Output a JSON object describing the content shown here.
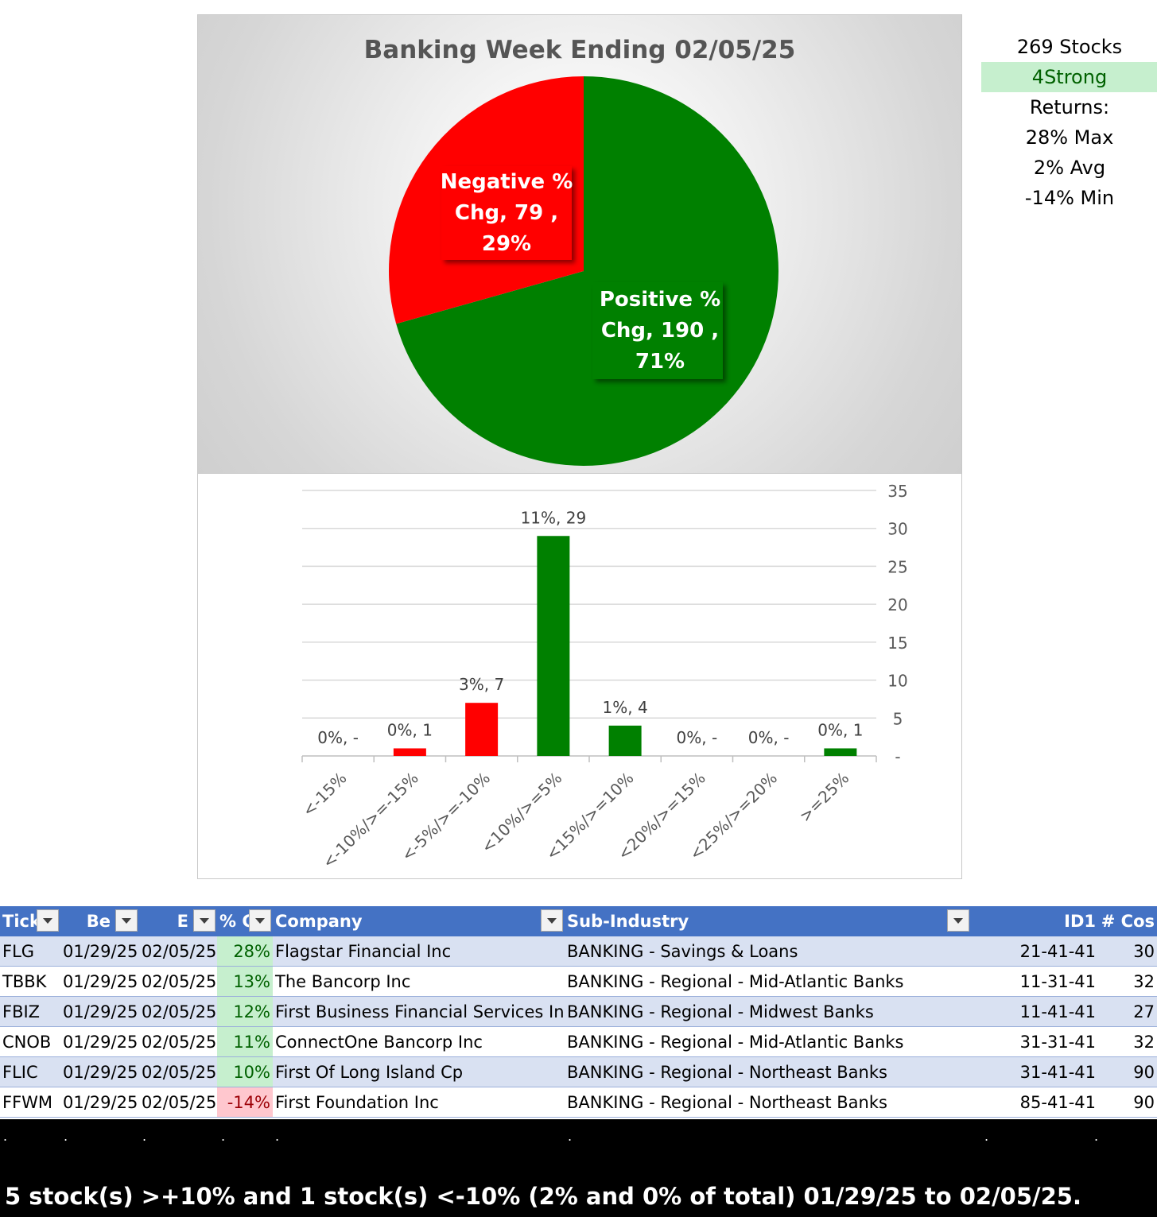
{
  "chart_data": [
    {
      "type": "pie",
      "title": "Banking Week Ending 02/05/25",
      "slices": [
        {
          "name": "Positive % Chg",
          "value": 190,
          "percent": "71%",
          "color": "#008000"
        },
        {
          "name": "Negative % Chg",
          "value": 79,
          "percent": "29%",
          "color": "#ff0000"
        }
      ],
      "labels": {
        "positive": [
          "Positive %",
          "Chg,  190 ,",
          "71%"
        ],
        "negative": [
          "Negative %",
          "Chg,  79 ,",
          "29%"
        ]
      }
    },
    {
      "type": "bar",
      "categories": [
        "<-15%",
        "<-10%/>=-15%",
        "<-5%/>=-10%",
        "<10%/>=5%",
        "<15%/>=10%",
        "<20%/>=15%",
        "<25%/>=20%",
        ">=25%"
      ],
      "values": [
        0,
        1,
        7,
        29,
        4,
        0,
        0,
        1
      ],
      "colors": [
        "#ff0000",
        "#ff0000",
        "#ff0000",
        "#008000",
        "#008000",
        "#008000",
        "#008000",
        "#008000"
      ],
      "data_labels": [
        "0%,  -",
        "0%,  1",
        "3%,  7",
        "11%,  29",
        "1%,  4",
        "0%,  -",
        "0%,  -",
        "0%,  1"
      ],
      "ylim": [
        0,
        35
      ],
      "yticks": [
        "-",
        "5",
        "10",
        "15",
        "20",
        "25",
        "30",
        "35"
      ],
      "grid": true,
      "yaxis_side": "right"
    }
  ],
  "side": {
    "stocks": "269 Stocks",
    "strong": "4Strong",
    "returns": "Returns:",
    "max": "28% Max",
    "avg": "2% Avg",
    "min": "-14% Min"
  },
  "table": {
    "headers": [
      "Tick",
      "Be",
      "E",
      "% C",
      "Company",
      "Sub-Industry",
      "ID1",
      "# Cos"
    ],
    "rows": [
      {
        "tick": "FLG",
        "begin": "01/29/25",
        "end": "02/05/25",
        "chg": "28%",
        "company": "Flagstar Financial Inc",
        "sub": "BANKING - Savings & Loans",
        "id1": "21-41-41",
        "cos": "30"
      },
      {
        "tick": "TBBK",
        "begin": "01/29/25",
        "end": "02/05/25",
        "chg": "13%",
        "company": "The Bancorp Inc",
        "sub": "BANKING - Regional - Mid-Atlantic Banks",
        "id1": "11-31-41",
        "cos": "32"
      },
      {
        "tick": "FBIZ",
        "begin": "01/29/25",
        "end": "02/05/25",
        "chg": "12%",
        "company": "First Business Financial Services Inc",
        "sub": "BANKING - Regional - Midwest Banks",
        "id1": "11-41-41",
        "cos": "27"
      },
      {
        "tick": "CNOB",
        "begin": "01/29/25",
        "end": "02/05/25",
        "chg": "11%",
        "company": "ConnectOne Bancorp Inc",
        "sub": "BANKING - Regional - Mid-Atlantic Banks",
        "id1": "31-31-41",
        "cos": "32"
      },
      {
        "tick": "FLIC",
        "begin": "01/29/25",
        "end": "02/05/25",
        "chg": "10%",
        "company": "First Of Long Island Cp",
        "sub": "BANKING - Regional - Northeast Banks",
        "id1": "31-41-41",
        "cos": "90"
      },
      {
        "tick": "FFWM",
        "begin": "01/29/25",
        "end": "02/05/25",
        "chg": "-14%",
        "company": "First Foundation Inc",
        "sub": "BANKING - Regional - Northeast Banks",
        "id1": "85-41-41",
        "cos": "90"
      }
    ]
  },
  "footer": {
    "dot": ".",
    "summary": "5 stock(s) >+10% and 1 stock(s) <-10% (2% and 0% of total) 01/29/25 to 02/05/25."
  }
}
